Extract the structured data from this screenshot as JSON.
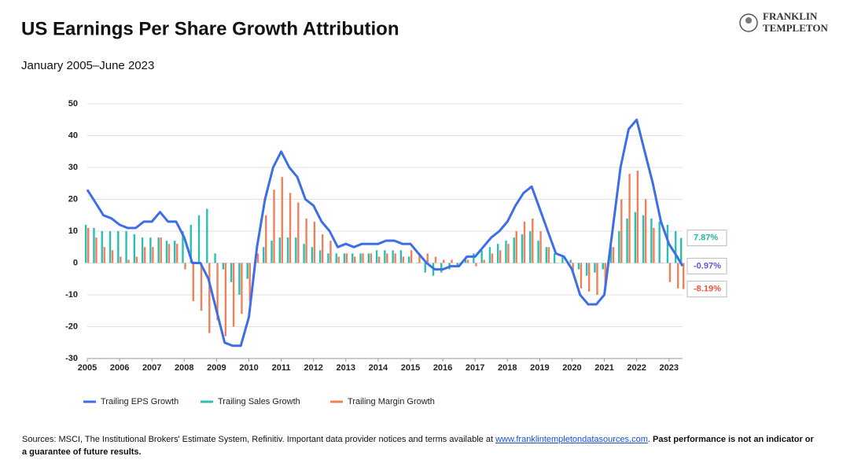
{
  "chart_data": {
    "type": "combo",
    "title": "US Earnings Per Share Growth Attribution",
    "subtitle": "January 2005–June 2023",
    "logo": [
      "FRANKLIN",
      "TEMPLETON"
    ],
    "x": [
      2005,
      2005.25,
      2005.5,
      2005.75,
      2006,
      2006.25,
      2006.5,
      2006.75,
      2007,
      2007.25,
      2007.5,
      2007.75,
      2008,
      2008.25,
      2008.5,
      2008.75,
      2009,
      2009.25,
      2009.5,
      2009.75,
      2010,
      2010.25,
      2010.5,
      2010.75,
      2011,
      2011.25,
      2011.5,
      2011.75,
      2012,
      2012.25,
      2012.5,
      2012.75,
      2013,
      2013.25,
      2013.5,
      2013.75,
      2014,
      2014.25,
      2014.5,
      2014.75,
      2015,
      2015.25,
      2015.5,
      2015.75,
      2016,
      2016.25,
      2016.5,
      2016.75,
      2017,
      2017.25,
      2017.5,
      2017.75,
      2018,
      2018.25,
      2018.5,
      2018.75,
      2019,
      2019.25,
      2019.5,
      2019.75,
      2020,
      2020.25,
      2020.5,
      2020.75,
      2021,
      2021.25,
      2021.5,
      2021.75,
      2022,
      2022.25,
      2022.5,
      2022.75,
      2023,
      2023.25,
      2023.42
    ],
    "series": [
      {
        "name": "Trailing EPS Growth",
        "type": "line",
        "color": "#3d6ee8",
        "label_color": "#5b5bd6",
        "values": [
          23,
          19,
          15,
          14,
          12,
          11,
          11,
          13,
          13,
          16,
          13,
          13,
          8,
          0,
          0,
          -5,
          -15,
          -25,
          -26,
          -26,
          -17,
          5,
          20,
          30,
          35,
          30,
          27,
          20,
          18,
          13,
          10,
          5,
          6,
          5,
          6,
          6,
          6,
          7,
          7,
          6,
          6,
          3,
          0,
          -2,
          -2,
          -1,
          -1,
          2,
          2,
          5,
          8,
          10,
          13,
          18,
          22,
          24,
          17,
          10,
          3,
          2,
          -2,
          -10,
          -13,
          -13,
          -10,
          10,
          30,
          42,
          45,
          35,
          25,
          13,
          6,
          2,
          -0.97
        ],
        "value_labels": [
          null,
          null,
          null,
          null,
          null,
          null,
          null,
          null,
          null,
          null,
          null,
          null,
          null,
          null,
          null,
          null,
          null,
          null,
          null,
          null,
          null,
          null,
          null,
          null,
          null,
          null,
          null,
          null,
          null,
          null,
          null,
          null,
          null,
          null,
          null,
          null,
          null,
          null,
          null,
          null,
          null,
          null,
          null,
          null,
          null,
          null,
          null,
          null,
          null,
          null,
          null,
          null,
          null,
          null,
          null,
          null,
          null,
          null,
          null,
          null,
          null,
          null,
          null,
          null,
          null,
          null,
          null,
          null,
          null,
          null,
          null,
          null,
          null,
          null,
          "-0.97%"
        ]
      },
      {
        "name": "Trailing Sales Growth",
        "type": "bar",
        "color": "#2bbfb3",
        "label_color": "#1fb5aa",
        "values": [
          12,
          11,
          10,
          10,
          10,
          10,
          9,
          8,
          8,
          8,
          7,
          7,
          10,
          12,
          15,
          17,
          3,
          -2,
          -6,
          -10,
          -5,
          2,
          5,
          7,
          8,
          8,
          8,
          6,
          5,
          4,
          3,
          3,
          3,
          3,
          3,
          3,
          4,
          4,
          4,
          4,
          2,
          0,
          -3,
          -4,
          -3,
          -2,
          -1,
          1,
          3,
          4,
          5,
          6,
          7,
          8,
          9,
          10,
          7,
          5,
          3,
          2,
          1,
          -2,
          -4,
          -3,
          -2,
          5,
          10,
          14,
          16,
          15,
          14,
          13,
          12,
          10,
          7.87
        ],
        "value_labels": [
          null,
          null,
          null,
          null,
          null,
          null,
          null,
          null,
          null,
          null,
          null,
          null,
          null,
          null,
          null,
          null,
          null,
          null,
          null,
          null,
          null,
          null,
          null,
          null,
          null,
          null,
          null,
          null,
          null,
          null,
          null,
          null,
          null,
          null,
          null,
          null,
          null,
          null,
          null,
          null,
          null,
          null,
          null,
          null,
          null,
          null,
          null,
          null,
          null,
          null,
          null,
          null,
          null,
          null,
          null,
          null,
          null,
          null,
          null,
          null,
          null,
          null,
          null,
          null,
          null,
          null,
          null,
          null,
          null,
          null,
          null,
          null,
          null,
          null,
          "7.87%"
        ]
      },
      {
        "name": "Trailing Margin Growth",
        "type": "bar",
        "color": "#f0805a",
        "label_color": "#e8553a",
        "values": [
          11,
          8,
          5,
          4,
          2,
          1,
          2,
          5,
          5,
          8,
          6,
          6,
          -2,
          -12,
          -15,
          -22,
          -18,
          -23,
          -20,
          -16,
          -12,
          3,
          15,
          23,
          27,
          22,
          19,
          14,
          13,
          9,
          7,
          2,
          3,
          2,
          3,
          3,
          2,
          3,
          3,
          2,
          4,
          3,
          3,
          2,
          1,
          1,
          0,
          1,
          -1,
          1,
          3,
          4,
          6,
          10,
          13,
          14,
          10,
          5,
          0,
          0,
          -3,
          -8,
          -9,
          -10,
          -8,
          5,
          20,
          28,
          29,
          20,
          11,
          0,
          -6,
          -8,
          -8.19
        ],
        "value_labels": [
          null,
          null,
          null,
          null,
          null,
          null,
          null,
          null,
          null,
          null,
          null,
          null,
          null,
          null,
          null,
          null,
          null,
          null,
          null,
          null,
          null,
          null,
          null,
          null,
          null,
          null,
          null,
          null,
          null,
          null,
          null,
          null,
          null,
          null,
          null,
          null,
          null,
          null,
          null,
          null,
          null,
          null,
          null,
          null,
          null,
          null,
          null,
          null,
          null,
          null,
          null,
          null,
          null,
          null,
          null,
          null,
          null,
          null,
          null,
          null,
          null,
          null,
          null,
          null,
          null,
          null,
          null,
          null,
          null,
          null,
          null,
          null,
          null,
          null,
          "-8.19%"
        ]
      }
    ],
    "xlim": [
      2005,
      2023.42
    ],
    "xticks": [
      2005,
      2006,
      2007,
      2008,
      2009,
      2010,
      2011,
      2012,
      2013,
      2014,
      2015,
      2016,
      2017,
      2018,
      2019,
      2020,
      2021,
      2022,
      2023
    ],
    "ylim": [
      -30,
      50
    ],
    "yticks": [
      -30,
      -20,
      -10,
      0,
      10,
      20,
      30,
      40,
      50
    ],
    "grid": true,
    "legend": "bottom",
    "source_text": "Sources: MSCI, The Institutional Brokers' Estimate System, Refinitiv. Important data provider notices and terms available at",
    "source_link": "www.franklintempletondatasources.com",
    "source_note": "Past performance is not an indicator or a guarantee of future results."
  }
}
